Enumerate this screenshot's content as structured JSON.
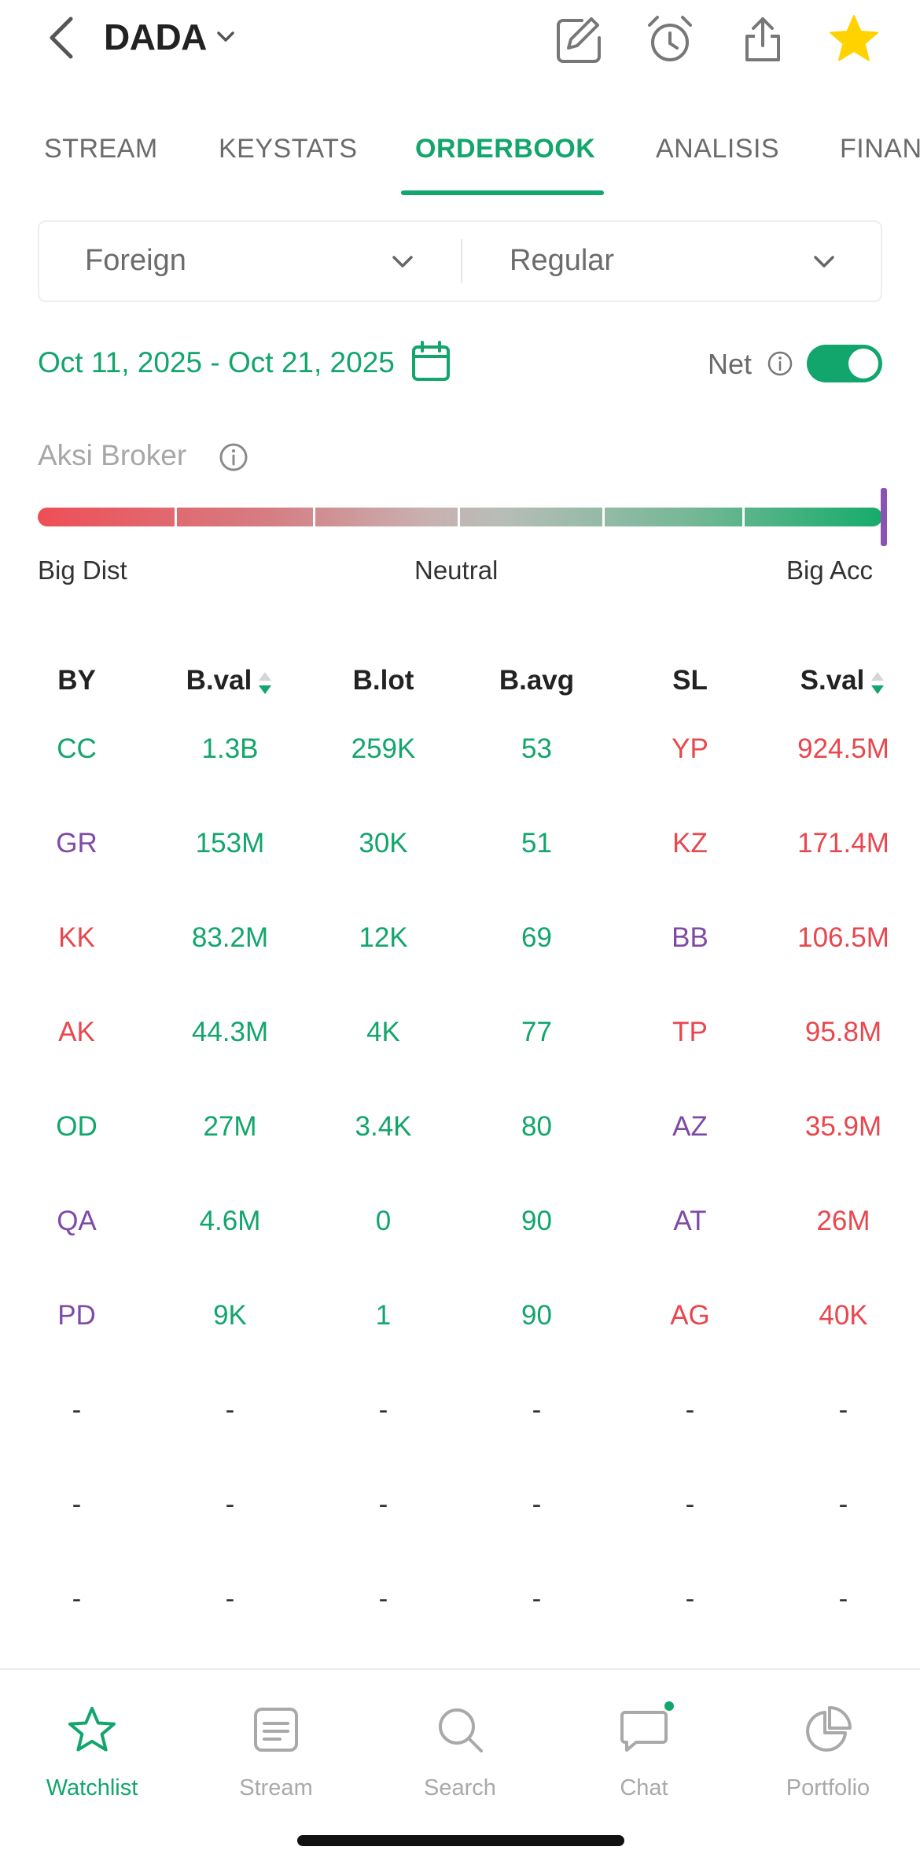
{
  "header": {
    "ticker": "DADA",
    "icons": [
      "back-chevron-icon",
      "edit-icon",
      "alarm-icon",
      "share-icon",
      "star-icon"
    ],
    "favorite_color": "#FFD200"
  },
  "tabs": [
    {
      "label": "STREAM",
      "active": false
    },
    {
      "label": "KEYSTATS",
      "active": false
    },
    {
      "label": "ORDERBOOK",
      "active": true
    },
    {
      "label": "ANALISIS",
      "active": false
    },
    {
      "label": "FINAN",
      "active": false
    }
  ],
  "filters": {
    "investor_type": "Foreign",
    "board_type": "Regular"
  },
  "date_range": "Oct 11, 2025 - Oct 21, 2025",
  "net": {
    "label": "Net",
    "enabled": true
  },
  "aksi_broker": {
    "label": "Aksi Broker",
    "scale_left": "Big Dist",
    "scale_center": "Neutral",
    "scale_right": "Big Acc",
    "position": 1.0
  },
  "table": {
    "headers": [
      "BY",
      "B.val",
      "B.lot",
      "B.avg",
      "SL",
      "S.val"
    ],
    "rows": [
      {
        "by": "CC",
        "bval": "1.3B",
        "blot": "259K",
        "bavg": "53",
        "sl": "YP",
        "sval": "924.5M"
      },
      {
        "by": "GR",
        "bval": "153M",
        "blot": "30K",
        "bavg": "51",
        "sl": "KZ",
        "sval": "171.4M"
      },
      {
        "by": "KK",
        "bval": "83.2M",
        "blot": "12K",
        "bavg": "69",
        "sl": "BB",
        "sval": "106.5M"
      },
      {
        "by": "AK",
        "bval": "44.3M",
        "blot": "4K",
        "bavg": "77",
        "sl": "TP",
        "sval": "95.8M"
      },
      {
        "by": "OD",
        "bval": "27M",
        "blot": "3.4K",
        "bavg": "80",
        "sl": "AZ",
        "sval": "35.9M"
      },
      {
        "by": "QA",
        "bval": "4.6M",
        "blot": "0",
        "bavg": "90",
        "sl": "AT",
        "sval": "26M"
      },
      {
        "by": "PD",
        "bval": "9K",
        "blot": "1",
        "bavg": "90",
        "sl": "AG",
        "sval": "40K"
      },
      {
        "by": "-",
        "bval": "-",
        "blot": "-",
        "bavg": "-",
        "sl": "-",
        "sval": "-"
      },
      {
        "by": "-",
        "bval": "-",
        "blot": "-",
        "bavg": "-",
        "sl": "-",
        "sval": "-"
      },
      {
        "by": "-",
        "bval": "-",
        "blot": "-",
        "bavg": "-",
        "sl": "-",
        "sval": "-"
      }
    ]
  },
  "bottom_nav": [
    {
      "label": "Watchlist",
      "icon": "star-outline-icon",
      "active": true
    },
    {
      "label": "Stream",
      "icon": "stream-icon",
      "active": false
    },
    {
      "label": "Search",
      "icon": "search-icon",
      "active": false
    },
    {
      "label": "Chat",
      "icon": "chat-icon",
      "active": false
    },
    {
      "label": "Portfolio",
      "icon": "pie-chart-icon",
      "active": false
    }
  ],
  "colors": {
    "accent": "#12A56C",
    "buy": "#12A56C",
    "sell": "#E8474E",
    "broker_foreign_or_special": "#7F4AA6"
  }
}
